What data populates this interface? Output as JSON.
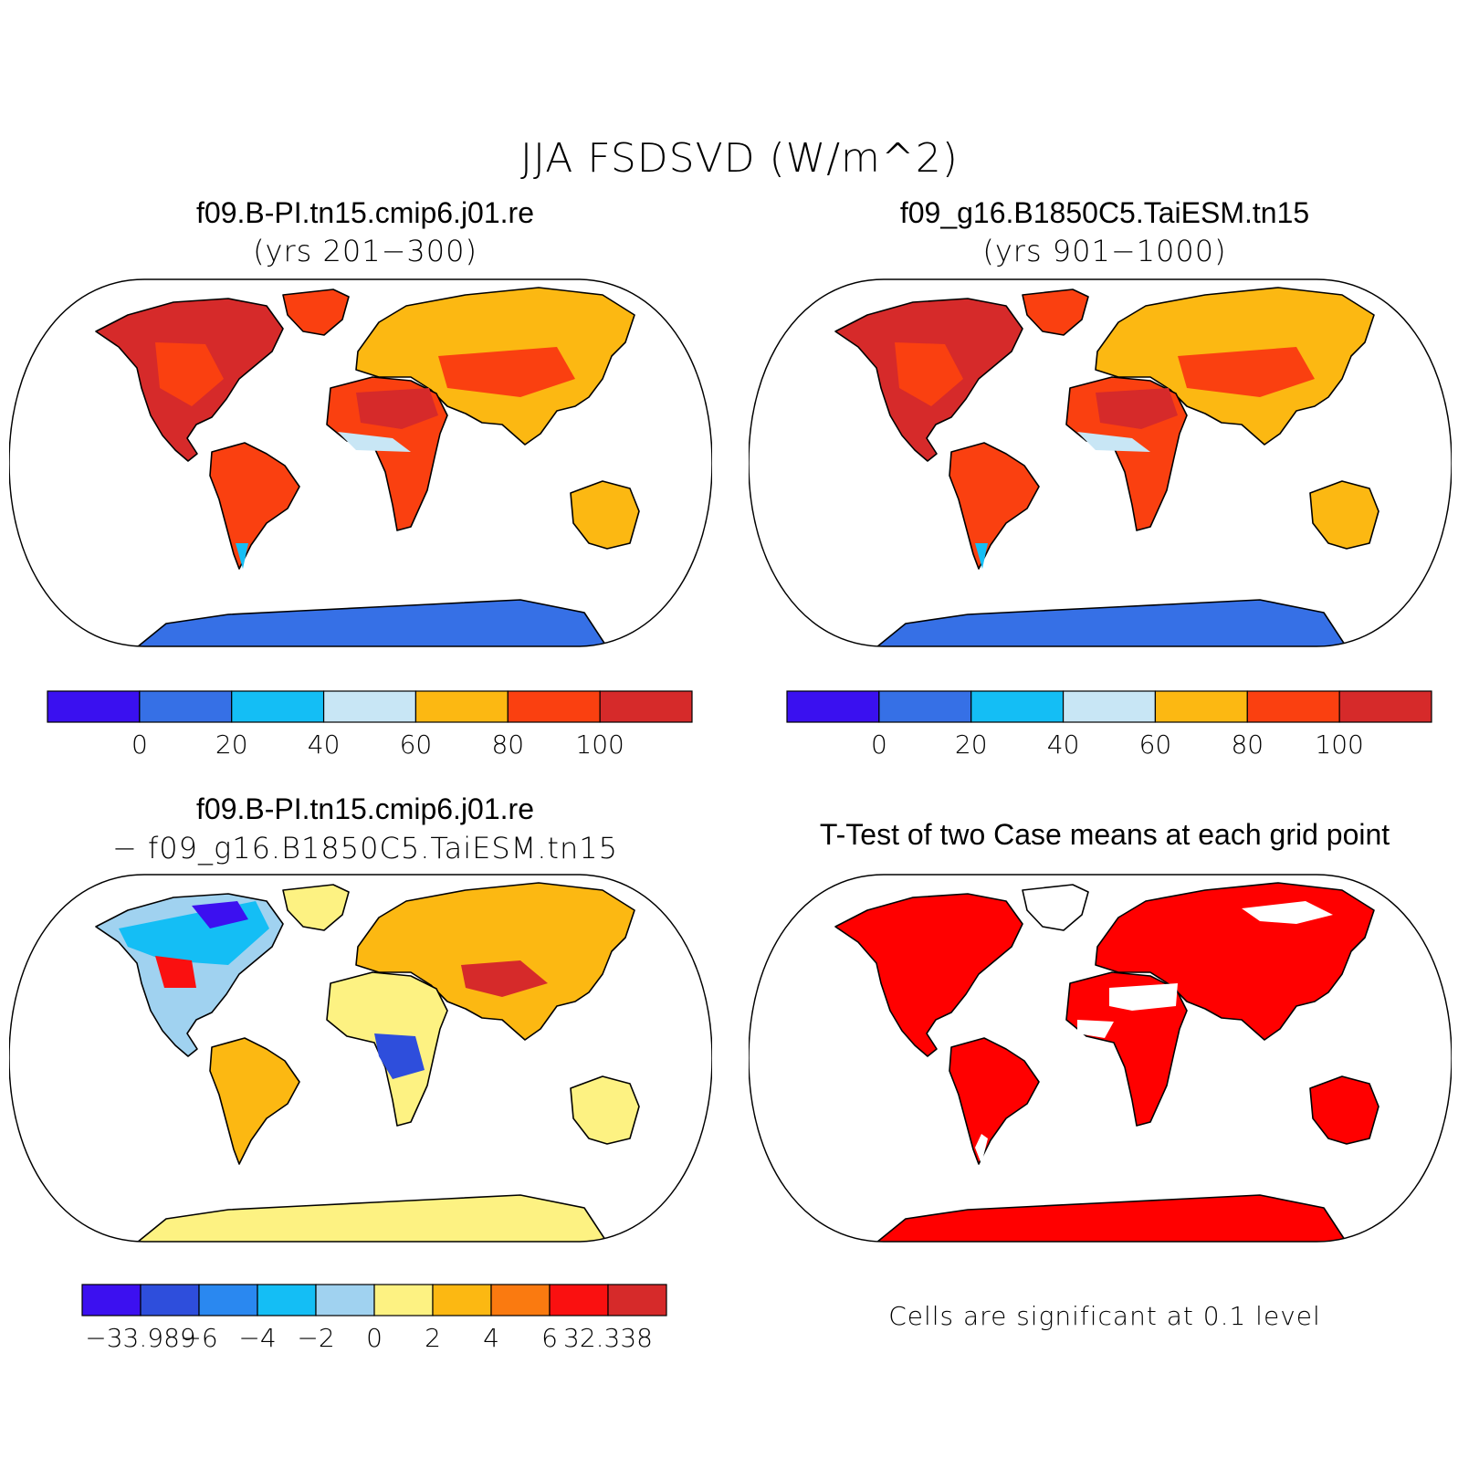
{
  "figure": {
    "title": "JJA FSDSVD (W/m^2)"
  },
  "panels": {
    "p1": {
      "title": "f09.B-PI.tn15.cmip6.j01.re",
      "subtitle": "(yrs 201−300)"
    },
    "p2": {
      "title": "f09_g16.B1850C5.TaiESM.tn15",
      "subtitle": "(yrs 901−1000)"
    },
    "p3": {
      "title": "f09.B-PI.tn15.cmip6.j01.re",
      "subtitle": "− f09_g16.B1850C5.TaiESM.tn15"
    },
    "p4": {
      "title": "T-Test of two Case means at each grid point",
      "note": "Cells are significant at 0.1 level"
    }
  },
  "colorbars": {
    "abs": {
      "colors": [
        "#3a10f0",
        "#3670e6",
        "#14bef5",
        "#c8e6f5",
        "#fcb812",
        "#fa4010",
        "#d62a2a"
      ],
      "labels": [
        "0",
        "20",
        "40",
        "60",
        "80",
        "100"
      ]
    },
    "diff": {
      "colors": [
        "#3c10f0",
        "#2e4edc",
        "#2a88f0",
        "#14bef5",
        "#a0d2f0",
        "#fdf282",
        "#fcb812",
        "#fa7a10",
        "#fa1010",
        "#d62a2a"
      ],
      "labels": [
        "−33.989",
        "−6",
        "−4",
        "−2",
        "0",
        "2",
        "4",
        "6",
        "32.338"
      ]
    },
    "ttest_color": "#ff0000"
  }
}
